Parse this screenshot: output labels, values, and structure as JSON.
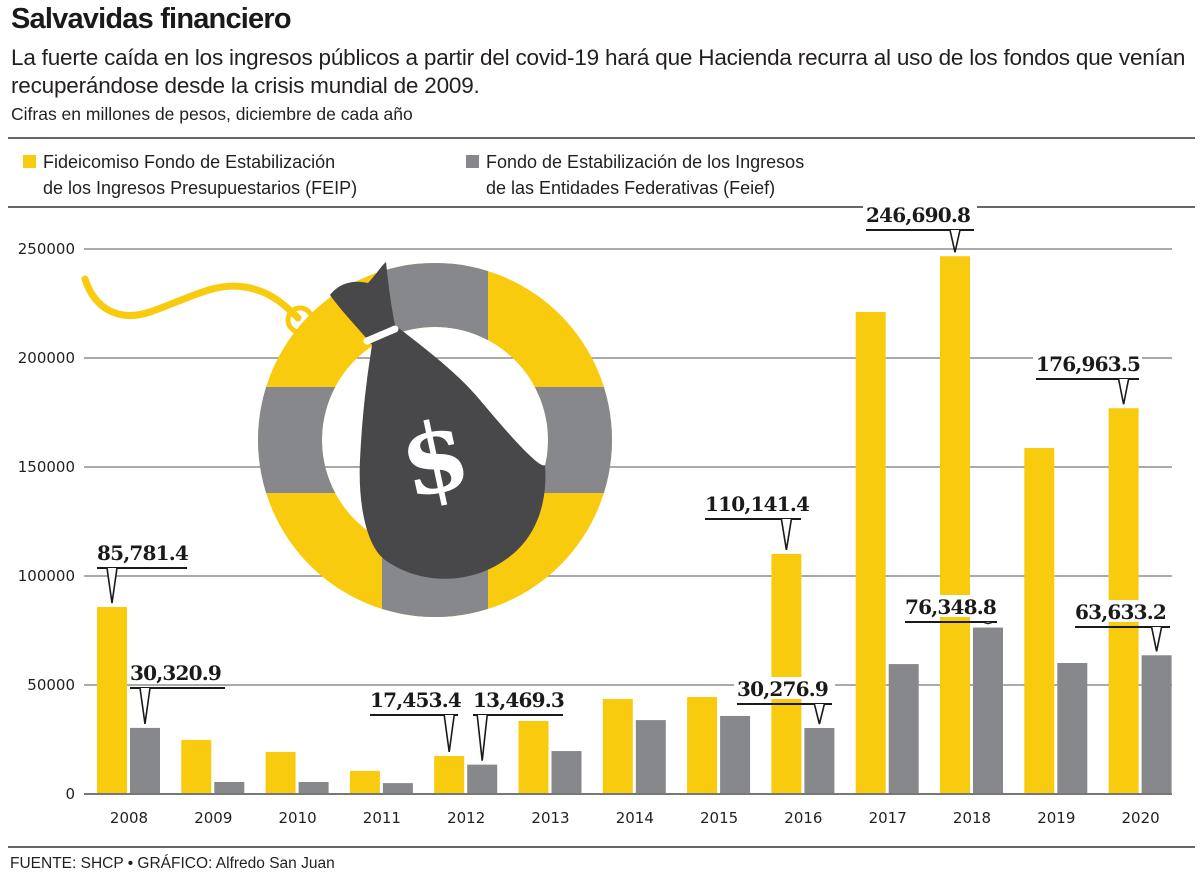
{
  "header": {
    "title": "Salvavidas financiero",
    "subtitle": "La fuerte caída en los ingresos públicos a partir del covid-19 hará que Hacienda recurra al uso de los fondos que venían recuperándose desde la crisis mundial de 2009.",
    "units": "Cifras en millones de pesos, diciembre de cada año"
  },
  "legend": [
    {
      "label": "Fideicomiso Fondo de Estabilización\nde los Ingresos Presupuestarios (FEIP)",
      "color": "#F9CB0E"
    },
    {
      "label": "Fondo de Estabilización de los Ingresos\nde las Entidades Federativas (Feief)",
      "color": "#87888B"
    }
  ],
  "illustration": {
    "icon": "money-bag-on-lifebuoy-icon",
    "symbol": "$",
    "colors": {
      "ring_yellow": "#F9CB0E",
      "ring_grey": "#87888B",
      "bag": "#48484A"
    }
  },
  "footer": {
    "source": "FUENTE: SHCP • GRÁFICO: Alfredo San Juan"
  },
  "chart_data": {
    "type": "bar",
    "title": "Salvavidas financiero",
    "xlabel": "",
    "ylabel": "Millones de pesos",
    "ylim": [
      0,
      250000
    ],
    "yticks": [
      0,
      50000,
      100000,
      150000,
      200000,
      250000
    ],
    "ytick_labels": [
      "0",
      "50000",
      "100000",
      "150000",
      "200000",
      "250000"
    ],
    "grid": true,
    "legend_position": "top",
    "categories": [
      "2008",
      "2009",
      "2010",
      "2011",
      "2012",
      "2013",
      "2014",
      "2015",
      "2016",
      "2017",
      "2018",
      "2019",
      "2020"
    ],
    "series": [
      {
        "name": "Fideicomiso Fondo de Estabilización de los Ingresos Presupuestarios (FEIP)",
        "color": "#F9CB0E",
        "values": [
          85781.4,
          24800,
          19300,
          10600,
          17453.4,
          33500,
          43600,
          44500,
          110141.4,
          221100,
          246690.8,
          158700,
          176963.5
        ]
      },
      {
        "name": "Fondo de Estabilización de los Ingresos de las Entidades Federativas (Feief)",
        "color": "#87888B",
        "values": [
          30320.9,
          5500,
          5500,
          5000,
          13469.3,
          19700,
          33900,
          35800,
          30276.9,
          59600,
          76348.8,
          60100,
          63633.2
        ]
      }
    ],
    "annotations": [
      {
        "series": 0,
        "category": "2008",
        "text": "85,781.4"
      },
      {
        "series": 1,
        "category": "2008",
        "text": "30,320.9"
      },
      {
        "series": 0,
        "category": "2012",
        "text": "17,453.4"
      },
      {
        "series": 1,
        "category": "2012",
        "text": "13,469.3"
      },
      {
        "series": 0,
        "category": "2016",
        "text": "110,141.4"
      },
      {
        "series": 1,
        "category": "2016",
        "text": "30,276.9"
      },
      {
        "series": 0,
        "category": "2018",
        "text": "246,690.8"
      },
      {
        "series": 1,
        "category": "2018",
        "text": "76,348.8"
      },
      {
        "series": 0,
        "category": "2020",
        "text": "176,963.5"
      },
      {
        "series": 1,
        "category": "2020",
        "text": "63,633.2"
      }
    ]
  }
}
